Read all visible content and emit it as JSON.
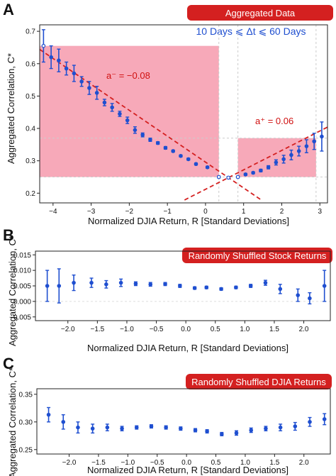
{
  "chart_data": [
    {
      "type": "scatter",
      "panel": "A",
      "badge": "Aggregated Data",
      "window_label": "10 Days ⩽ Δt ⩽ 60 Days",
      "xlabel": "Normalized DJIA Return, R [Standard Deviations]",
      "ylabel": "Aggregated Correlation, C*",
      "xlim": [
        -4.35,
        3.2
      ],
      "ylim": [
        0.17,
        0.72
      ],
      "xticks": [
        -4,
        -3,
        -2,
        -1,
        0,
        1,
        2,
        3
      ],
      "yticks": [
        0.2,
        0.3,
        0.4,
        0.5,
        0.6,
        0.7
      ],
      "grid": "dashed-at-boundaries",
      "annotations": {
        "left": "a⁻ = −0.08",
        "right": "a⁺ = 0.06"
      },
      "fit_lines": {
        "left_slope": -0.08,
        "right_slope": 0.06,
        "color": "#d42020"
      },
      "shaded_regions": [
        {
          "x": [
            -4.35,
            0.35
          ],
          "y": [
            0.25,
            0.655
          ]
        },
        {
          "x": [
            0.85,
            2.9
          ],
          "y": [
            0.25,
            0.37
          ]
        }
      ],
      "series": [
        {
          "color": "#1f4fd0",
          "points": [
            {
              "x": -4.25,
              "y": 0.655,
              "err": 0.05,
              "open": true
            },
            {
              "x": -4.05,
              "y": 0.62,
              "err": 0.035
            },
            {
              "x": -3.85,
              "y": 0.61,
              "err": 0.035
            },
            {
              "x": -3.65,
              "y": 0.585,
              "err": 0.02
            },
            {
              "x": -3.45,
              "y": 0.57,
              "err": 0.025
            },
            {
              "x": -3.25,
              "y": 0.545,
              "err": 0.015
            },
            {
              "x": -3.05,
              "y": 0.525,
              "err": 0.02
            },
            {
              "x": -2.85,
              "y": 0.51,
              "err": 0.02
            },
            {
              "x": -2.65,
              "y": 0.48,
              "err": 0.01
            },
            {
              "x": -2.45,
              "y": 0.465,
              "err": 0.012
            },
            {
              "x": -2.25,
              "y": 0.445,
              "err": 0.008
            },
            {
              "x": -2.05,
              "y": 0.425,
              "err": 0.01
            },
            {
              "x": -1.85,
              "y": 0.395,
              "err": 0.01
            },
            {
              "x": -1.65,
              "y": 0.38,
              "err": 0.006
            },
            {
              "x": -1.45,
              "y": 0.365,
              "err": 0.005
            },
            {
              "x": -1.25,
              "y": 0.355,
              "err": 0.004
            },
            {
              "x": -1.05,
              "y": 0.34,
              "err": 0.004
            },
            {
              "x": -0.85,
              "y": 0.33,
              "err": 0.003
            },
            {
              "x": -0.65,
              "y": 0.315,
              "err": 0.003
            },
            {
              "x": -0.45,
              "y": 0.305,
              "err": 0.003
            },
            {
              "x": -0.25,
              "y": 0.29,
              "err": 0.003
            },
            {
              "x": 0.05,
              "y": 0.28,
              "err": 0.003
            },
            {
              "x": 0.35,
              "y": 0.25,
              "err": 0.003,
              "open": true
            },
            {
              "x": 0.6,
              "y": 0.248,
              "err": 0.003,
              "open": true
            },
            {
              "x": 0.85,
              "y": 0.25,
              "err": 0.003,
              "open": true
            },
            {
              "x": 1.05,
              "y": 0.258,
              "err": 0.003
            },
            {
              "x": 1.25,
              "y": 0.263,
              "err": 0.003
            },
            {
              "x": 1.45,
              "y": 0.27,
              "err": 0.004
            },
            {
              "x": 1.65,
              "y": 0.28,
              "err": 0.005
            },
            {
              "x": 1.85,
              "y": 0.295,
              "err": 0.008
            },
            {
              "x": 2.05,
              "y": 0.305,
              "err": 0.012
            },
            {
              "x": 2.25,
              "y": 0.318,
              "err": 0.015
            },
            {
              "x": 2.45,
              "y": 0.33,
              "err": 0.015
            },
            {
              "x": 2.65,
              "y": 0.345,
              "err": 0.02
            },
            {
              "x": 2.85,
              "y": 0.36,
              "err": 0.025
            },
            {
              "x": 3.05,
              "y": 0.375,
              "err": 0.045
            }
          ]
        }
      ]
    },
    {
      "type": "scatter",
      "panel": "B",
      "badge": "Randomly Shuffled Stock Returns",
      "xlabel": "Normalized DJIA Return, R [Standard Deviations]",
      "ylabel": "Aggregated Correlation, C*",
      "xlim": [
        -2.55,
        2.45
      ],
      "ylim": [
        -0.0062,
        0.0162
      ],
      "xticks": [
        -2.0,
        -1.5,
        -1.0,
        -0.5,
        0.0,
        0.5,
        1.0,
        1.5,
        2.0
      ],
      "yticks": [
        -0.005,
        0.0,
        0.005,
        0.01,
        0.015
      ],
      "series": [
        {
          "color": "#1f4fd0",
          "points": [
            {
              "x": -2.35,
              "y": 0.005,
              "err": 0.005
            },
            {
              "x": -2.15,
              "y": 0.005,
              "err": 0.0055
            },
            {
              "x": -1.9,
              "y": 0.006,
              "err": 0.0025
            },
            {
              "x": -1.6,
              "y": 0.006,
              "err": 0.0015
            },
            {
              "x": -1.35,
              "y": 0.0055,
              "err": 0.0012
            },
            {
              "x": -1.1,
              "y": 0.006,
              "err": 0.0012
            },
            {
              "x": -0.85,
              "y": 0.0057,
              "err": 0.0006
            },
            {
              "x": -0.6,
              "y": 0.0055,
              "err": 0.0006
            },
            {
              "x": -0.35,
              "y": 0.0056,
              "err": 0.0005
            },
            {
              "x": -0.1,
              "y": 0.005,
              "err": 0.0005
            },
            {
              "x": 0.15,
              "y": 0.0043,
              "err": 0.0004
            },
            {
              "x": 0.35,
              "y": 0.0045,
              "err": 0.0004
            },
            {
              "x": 0.6,
              "y": 0.004,
              "err": 0.0004
            },
            {
              "x": 0.85,
              "y": 0.0045,
              "err": 0.0004
            },
            {
              "x": 1.1,
              "y": 0.005,
              "err": 0.0005
            },
            {
              "x": 1.35,
              "y": 0.006,
              "err": 0.0008
            },
            {
              "x": 1.6,
              "y": 0.004,
              "err": 0.0015
            },
            {
              "x": 1.9,
              "y": 0.002,
              "err": 0.002
            },
            {
              "x": 2.1,
              "y": 0.001,
              "err": 0.0018
            },
            {
              "x": 2.35,
              "y": 0.005,
              "err": 0.005
            }
          ]
        }
      ]
    },
    {
      "type": "scatter",
      "panel": "C",
      "badge": "Randomly Shuffled DJIA Returns",
      "xlabel": "Normalized DJIA Return, R [Standard Deviations]",
      "ylabel": "Aggregated Correlation, C*",
      "xlim": [
        -2.55,
        2.45
      ],
      "ylim": [
        0.242,
        0.36
      ],
      "xticks": [
        -2.0,
        -1.5,
        -1.0,
        -0.5,
        0.0,
        0.5,
        1.0,
        1.5,
        2.0
      ],
      "yticks": [
        0.25,
        0.3,
        0.35
      ],
      "series": [
        {
          "color": "#1f4fd0",
          "points": [
            {
              "x": -2.35,
              "y": 0.313,
              "err": 0.013
            },
            {
              "x": -2.1,
              "y": 0.3,
              "err": 0.013
            },
            {
              "x": -1.85,
              "y": 0.29,
              "err": 0.01
            },
            {
              "x": -1.6,
              "y": 0.288,
              "err": 0.008
            },
            {
              "x": -1.35,
              "y": 0.29,
              "err": 0.006
            },
            {
              "x": -1.1,
              "y": 0.288,
              "err": 0.004
            },
            {
              "x": -0.85,
              "y": 0.29,
              "err": 0.003
            },
            {
              "x": -0.6,
              "y": 0.292,
              "err": 0.003
            },
            {
              "x": -0.35,
              "y": 0.29,
              "err": 0.003
            },
            {
              "x": -0.1,
              "y": 0.288,
              "err": 0.003
            },
            {
              "x": 0.15,
              "y": 0.285,
              "err": 0.003
            },
            {
              "x": 0.35,
              "y": 0.283,
              "err": 0.003
            },
            {
              "x": 0.6,
              "y": 0.278,
              "err": 0.003
            },
            {
              "x": 0.85,
              "y": 0.28,
              "err": 0.004
            },
            {
              "x": 1.1,
              "y": 0.285,
              "err": 0.004
            },
            {
              "x": 1.35,
              "y": 0.288,
              "err": 0.004
            },
            {
              "x": 1.6,
              "y": 0.29,
              "err": 0.006
            },
            {
              "x": 1.85,
              "y": 0.292,
              "err": 0.007
            },
            {
              "x": 2.1,
              "y": 0.3,
              "err": 0.008
            },
            {
              "x": 2.35,
              "y": 0.305,
              "err": 0.01
            }
          ]
        }
      ]
    }
  ],
  "colors": {
    "marker": "#1f4fd0",
    "badge": "#d42020",
    "fit": "#d42020",
    "shade": "#f7a9b9"
  }
}
